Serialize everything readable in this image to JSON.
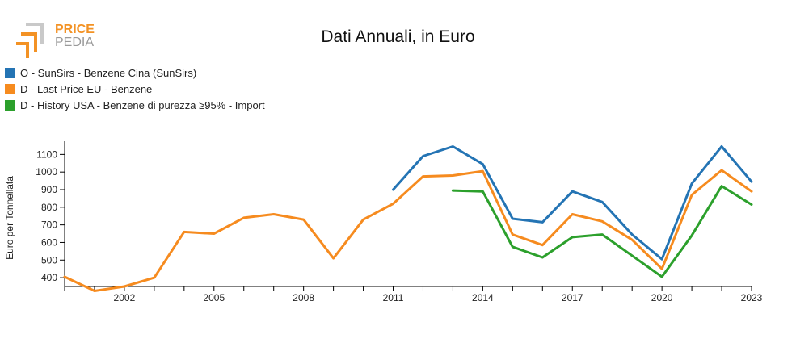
{
  "header": {
    "logo_text_top": "PRICE",
    "logo_text_bottom": "PEDIA",
    "title": "Dati Annuali, in Euro"
  },
  "colors": {
    "blue": "#2474b4",
    "orange": "#f68b1f",
    "green": "#2ca02c",
    "logo_orange": "#f39224",
    "logo_grey": "#9a9a9a"
  },
  "chart_data": {
    "type": "line",
    "title": "Dati Annuali, in Euro",
    "xlabel": "",
    "ylabel": "Euro per Tonnellata",
    "xlim": [
      2000,
      2023
    ],
    "ylim": [
      350,
      1175
    ],
    "xticks": [
      2002,
      2005,
      2008,
      2011,
      2014,
      2017,
      2020,
      2023
    ],
    "yticks": [
      400,
      500,
      600,
      700,
      800,
      900,
      1000,
      1100
    ],
    "grid": false,
    "legend_position": "top-left",
    "series": [
      {
        "name": "O - SunSirs - Benzene Cina (SunSirs)",
        "color": "#2474b4",
        "x": [
          2011,
          2012,
          2013,
          2014,
          2015,
          2016,
          2017,
          2018,
          2019,
          2020,
          2021,
          2022,
          2023
        ],
        "y": [
          900,
          1090,
          1145,
          1045,
          735,
          715,
          890,
          830,
          645,
          505,
          935,
          1145,
          945
        ]
      },
      {
        "name": "D - Last Price EU - Benzene",
        "color": "#f68b1f",
        "x": [
          2000,
          2001,
          2002,
          2003,
          2004,
          2005,
          2006,
          2007,
          2008,
          2009,
          2010,
          2011,
          2012,
          2013,
          2014,
          2015,
          2016,
          2017,
          2018,
          2019,
          2020,
          2021,
          2022,
          2023
        ],
        "y": [
          405,
          325,
          350,
          400,
          660,
          650,
          740,
          760,
          730,
          510,
          730,
          820,
          975,
          980,
          1005,
          645,
          585,
          760,
          720,
          615,
          450,
          870,
          1010,
          890
        ]
      },
      {
        "name": "D - History USA - Benzene di purezza ≥95% - Import",
        "color": "#2ca02c",
        "x": [
          2013,
          2014,
          2015,
          2016,
          2017,
          2018,
          2019,
          2020,
          2021,
          2022,
          2023
        ],
        "y": [
          895,
          890,
          575,
          515,
          630,
          645,
          525,
          405,
          640,
          920,
          815
        ]
      }
    ]
  }
}
